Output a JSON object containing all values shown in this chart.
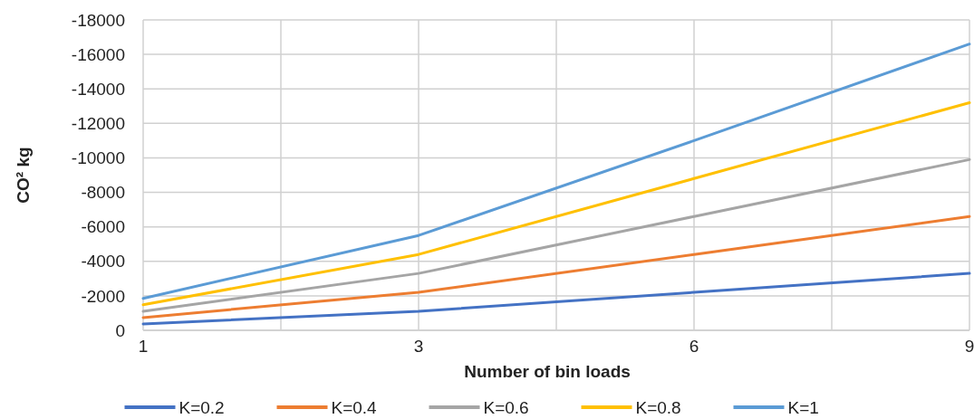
{
  "chart_data": {
    "type": "line",
    "xlabel": "Number of bin loads",
    "ylabel": "CO² kg",
    "categories": [
      "1",
      "3",
      "6",
      "9"
    ],
    "ylim": [
      0,
      -18000
    ],
    "yticks": [
      0,
      -2000,
      -4000,
      -6000,
      -8000,
      -10000,
      -12000,
      -14000,
      -16000,
      -18000
    ],
    "grid": true,
    "legend": "bottom",
    "marker": "none",
    "line_style": "solid",
    "series": [
      {
        "name": "K=0.2",
        "color": "#4472c4",
        "values": [
          -370,
          -1100,
          -2200,
          -3300
        ]
      },
      {
        "name": "K=0.4",
        "color": "#ed7d31",
        "values": [
          -740,
          -2200,
          -4400,
          -6600
        ]
      },
      {
        "name": "K=0.6",
        "color": "#a5a5a5",
        "values": [
          -1100,
          -3300,
          -6600,
          -9900
        ]
      },
      {
        "name": "K=0.8",
        "color": "#ffc000",
        "values": [
          -1480,
          -4400,
          -8800,
          -13200
        ]
      },
      {
        "name": "K=1",
        "color": "#5b9bd5",
        "values": [
          -1850,
          -5500,
          -11000,
          -16600
        ]
      }
    ]
  }
}
